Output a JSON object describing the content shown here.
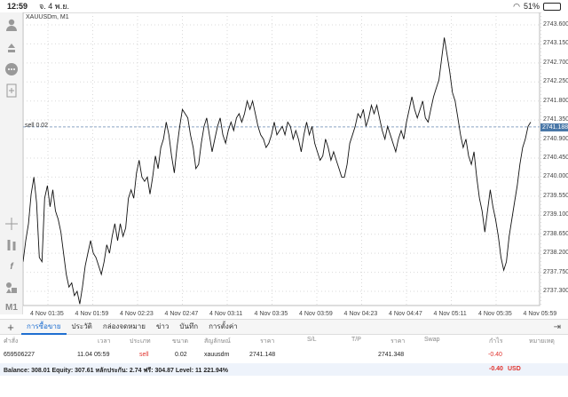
{
  "status": {
    "time": "12:59",
    "date": "จ. 4 พ.ย.",
    "battery": "51%",
    "battery_level": 0.51
  },
  "chart": {
    "symbol": "XAUUSDm, M1",
    "sell_label": "sell 0.02",
    "current_price": "2741.188",
    "y_labels": [
      "2743.600",
      "2743.150",
      "2742.700",
      "2742.250",
      "2741.800",
      "2741.350",
      "2740.900",
      "2740.450",
      "2740.000",
      "2739.550",
      "2739.100",
      "2738.650",
      "2738.200",
      "2737.750",
      "2737.300"
    ],
    "x_labels": [
      "4 Nov 01:35",
      "4 Nov 01:59",
      "4 Nov 02:23",
      "4 Nov 02:47",
      "4 Nov 03:11",
      "4 Nov 03:35",
      "4 Nov 03:59",
      "4 Nov 04:23",
      "4 Nov 04:47",
      "4 Nov 05:11",
      "4 Nov 05:35",
      "4 Nov 05:59"
    ],
    "series": [
      2738.0,
      2738.5,
      2738.9,
      2739.6,
      2740.0,
      2739.4,
      2738.1,
      2738.0,
      2739.5,
      2739.8,
      2739.3,
      2739.7,
      2739.2,
      2739.0,
      2738.7,
      2738.2,
      2737.7,
      2737.4,
      2737.5,
      2737.2,
      2737.3,
      2737.0,
      2737.4,
      2737.9,
      2738.2,
      2738.5,
      2738.2,
      2738.1,
      2737.9,
      2737.7,
      2738.0,
      2738.4,
      2738.2,
      2738.6,
      2738.9,
      2738.5,
      2738.9,
      2738.6,
      2738.8,
      2739.5,
      2739.7,
      2739.5,
      2740.1,
      2740.4,
      2740.0,
      2739.9,
      2740.0,
      2739.6,
      2740.0,
      2740.5,
      2740.2,
      2740.7,
      2740.9,
      2741.3,
      2741.0,
      2740.5,
      2740.1,
      2740.7,
      2741.2,
      2741.6,
      2741.5,
      2741.4,
      2741.0,
      2740.7,
      2740.2,
      2740.3,
      2740.8,
      2741.2,
      2741.4,
      2741.0,
      2740.6,
      2740.9,
      2741.2,
      2741.4,
      2741.0,
      2740.8,
      2741.1,
      2741.3,
      2741.1,
      2741.4,
      2741.5,
      2741.3,
      2741.5,
      2741.8,
      2741.6,
      2741.8,
      2741.5,
      2741.2,
      2741.0,
      2740.9,
      2740.7,
      2740.8,
      2741.0,
      2741.3,
      2741.0,
      2741.1,
      2741.2,
      2741.0,
      2741.3,
      2741.2,
      2740.9,
      2741.1,
      2740.9,
      2740.6,
      2741.0,
      2741.3,
      2741.0,
      2741.2,
      2740.8,
      2740.6,
      2740.4,
      2740.5,
      2740.9,
      2740.7,
      2740.4,
      2740.6,
      2740.4,
      2740.2,
      2740.0,
      2740.0,
      2740.3,
      2740.8,
      2741.0,
      2741.2,
      2741.5,
      2741.4,
      2741.6,
      2741.2,
      2741.4,
      2741.7,
      2741.5,
      2741.7,
      2741.4,
      2741.1,
      2740.9,
      2741.2,
      2741.0,
      2740.8,
      2740.6,
      2740.9,
      2741.1,
      2740.9,
      2741.3,
      2741.6,
      2741.9,
      2741.6,
      2741.4,
      2741.6,
      2741.8,
      2741.4,
      2741.3,
      2741.6,
      2741.9,
      2742.1,
      2742.3,
      2742.8,
      2743.3,
      2742.9,
      2742.5,
      2742.0,
      2741.8,
      2741.4,
      2741.0,
      2740.7,
      2740.9,
      2740.5,
      2740.3,
      2740.6,
      2740.0,
      2739.5,
      2739.2,
      2738.7,
      2739.2,
      2739.7,
      2739.3,
      2739.0,
      2738.6,
      2738.1,
      2737.8,
      2738.0,
      2738.6,
      2739.0,
      2739.4,
      2739.8,
      2740.3,
      2740.7,
      2740.9,
      2741.2,
      2741.3
    ]
  },
  "tabs": [
    "การซื้อขาย",
    "ประวัติ",
    "กล่องจดหมาย",
    "ข่าว",
    "บันทึก",
    "การตั้งค่า"
  ],
  "columns": [
    "คำสั่ง",
    "เวลา",
    "ประเภท",
    "ขนาด",
    "สัญลักษณ์",
    "ราคา",
    "S/L",
    "T/P",
    "ราคา",
    "Swap",
    "กำไร",
    "หมายเหตุ"
  ],
  "order": {
    "ticket": "659506227",
    "time": "11.04 05:59",
    "type": "sell",
    "size": "0.02",
    "symbol": "xauusdm",
    "open_price": "2741.148",
    "current_price": "2741.348",
    "profit": "-0.40"
  },
  "footer": {
    "summary": "Balance: 308.01 Equity: 307.61 หลักประกัน: 2.74 ฟรี: 304.87 Level: 11 221.94%",
    "profit": "-0.40",
    "currency": "USD"
  },
  "colors": {
    "accent": "#1f6fd1",
    "loss": "#e0322d",
    "price_tag": "#4a78a8"
  }
}
